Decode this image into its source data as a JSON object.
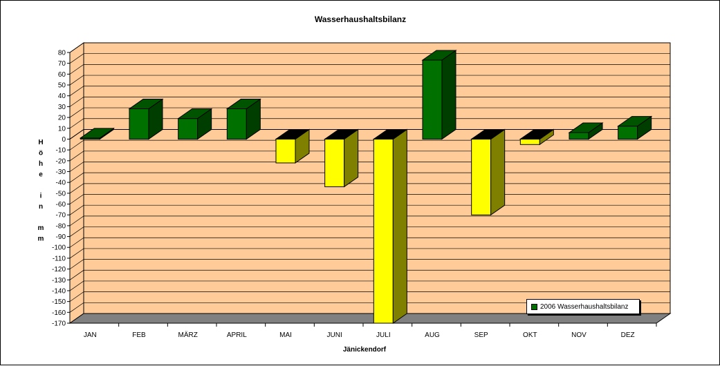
{
  "chart_data": {
    "type": "bar",
    "title": "Wasserhaushaltsbilanz",
    "xlabel": "Jänickendorf",
    "ylabel": "Höhe in mm",
    "categories": [
      "JAN",
      "FEB",
      "MÄRZ",
      "APRIL",
      "MAI",
      "JUNI",
      "JULI",
      "AUG",
      "SEP",
      "OKT",
      "NOV",
      "DEZ"
    ],
    "series": [
      {
        "name": "2006 Wasserhaushaltsbilanz",
        "values": [
          1,
          28,
          19,
          28,
          -22,
          -44,
          -170,
          73,
          -70,
          -5,
          6,
          12
        ]
      }
    ],
    "ylim": [
      -170,
      80
    ],
    "yticks": [
      80,
      70,
      60,
      50,
      40,
      30,
      20,
      10,
      0,
      -10,
      -20,
      -30,
      -40,
      -50,
      -60,
      -70,
      -80,
      -90,
      -100,
      -110,
      -120,
      -130,
      -140,
      -150,
      -160,
      -170
    ],
    "grid": true,
    "legend_position": "bottom-right",
    "colors": {
      "positive": "#007000",
      "negative": "#ffff00",
      "plot_wall": "#ffcc99",
      "floor": "#808080"
    }
  }
}
